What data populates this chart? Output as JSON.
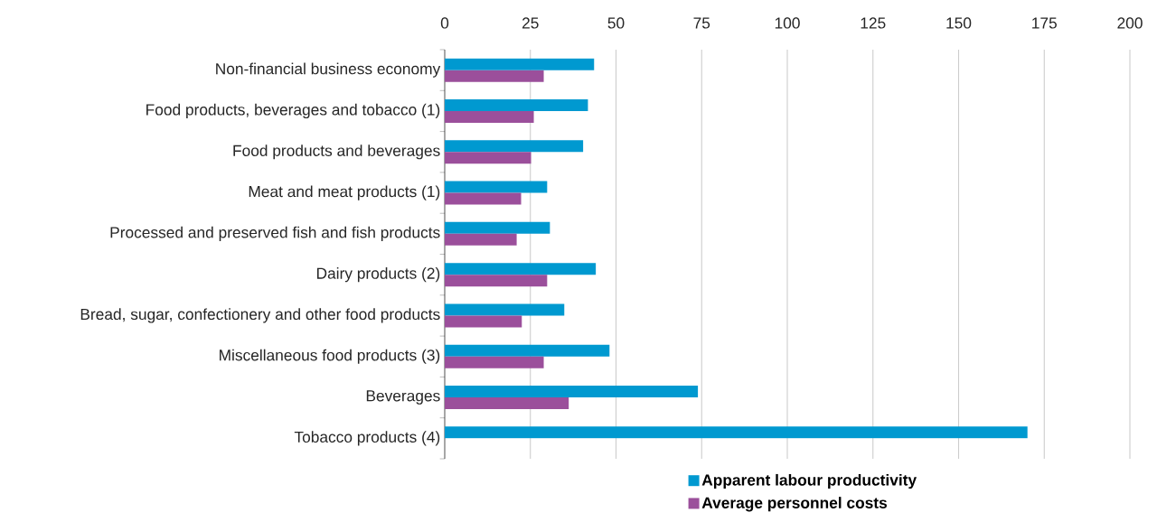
{
  "chart_data": {
    "type": "bar",
    "orientation": "horizontal",
    "categories": [
      "Non-financial business economy",
      "Food products, beverages and tobacco (1)",
      "Food products and beverages",
      "Meat and meat products (1)",
      "Processed and preserved fish and fish products",
      "Dairy products (2)",
      "Bread, sugar, confectionery and other food products",
      "Miscellaneous food products (3)",
      "Beverages",
      "Tobacco products (4)"
    ],
    "series": [
      {
        "name": "Apparent labour productivity",
        "color": "#0099d0",
        "values": [
          43.6,
          41.8,
          40.4,
          29.9,
          30.7,
          44.1,
          34.9,
          48.1,
          73.9,
          170.1
        ]
      },
      {
        "name": "Average personnel costs",
        "color": "#9b4f9b",
        "values": [
          28.9,
          26.0,
          25.2,
          22.3,
          21.0,
          29.9,
          22.5,
          28.9,
          36.2,
          null
        ]
      }
    ],
    "xlim": [
      0,
      200
    ],
    "xticks": [
      0,
      25,
      50,
      75,
      100,
      125,
      150,
      175,
      200
    ],
    "grid": "x",
    "legend": "bottom"
  }
}
